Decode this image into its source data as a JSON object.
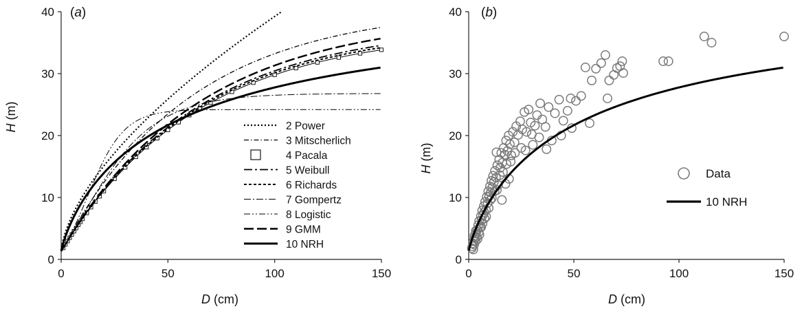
{
  "chart_data": [
    {
      "type": "line",
      "panel_label": "(a)",
      "xlabel": "D (cm)",
      "ylabel": "H (m)",
      "xlim": [
        0,
        150
      ],
      "ylim": [
        0,
        40
      ],
      "xticks": [
        0,
        50,
        100,
        150
      ],
      "yticks": [
        0,
        10,
        20,
        30,
        40
      ],
      "legend_position": "bottom-right",
      "series": [
        {
          "name": "2 Power",
          "style": "dotted",
          "model": "power",
          "params": {
            "a": 1.0,
            "b": 2.2,
            "c": 0.62
          }
        },
        {
          "name": "3 Mitscherlich",
          "style": "dashdot",
          "model": "monomolecular",
          "params": {
            "hmax": 40.8,
            "h0": 1.3,
            "k": 0.0165
          }
        },
        {
          "name": "4 Pacala",
          "style": "squares",
          "model": "monomolecular",
          "params": {
            "hmax": 37.2,
            "h0": 1.3,
            "k": 0.0158
          },
          "markers_x": [
            1,
            2,
            3,
            4,
            5,
            6,
            7,
            8,
            9,
            10,
            12,
            14,
            16,
            18,
            20,
            25,
            30,
            35,
            40,
            45,
            50,
            55,
            60,
            65,
            70,
            80,
            90,
            100,
            110,
            120,
            130,
            140,
            150
          ]
        },
        {
          "name": "5 Weibull",
          "style": "longdashdot",
          "model": "monomolecular",
          "params": {
            "hmax": 38.0,
            "h0": 1.3,
            "k": 0.0158
          }
        },
        {
          "name": "6 Richards",
          "style": "shortdash",
          "model": "monomolecular",
          "params": {
            "hmax": 37.6,
            "h0": 1.3,
            "k": 0.0158
          }
        },
        {
          "name": "7 Gompertz",
          "style": "dashdot-thin",
          "model": "gompertz",
          "params": {
            "hmax": 26.8,
            "h0": 1.3,
            "k": 0.052
          }
        },
        {
          "name": "8 Logistic",
          "style": "dashdotdot",
          "model": "logistic",
          "params": {
            "hmax": 24.2,
            "h0": 1.3,
            "k": 0.115
          }
        },
        {
          "name": "9 GMM",
          "style": "longdash",
          "model": "monomolecular",
          "params": {
            "hmax": 39.4,
            "h0": 1.3,
            "k": 0.0155
          }
        },
        {
          "name": "10 NRH",
          "style": "solid",
          "model": "nrh",
          "params": {
            "hmax": 43.5,
            "h0": 1.3,
            "a": 29.8,
            "b": 0.85
          }
        }
      ]
    },
    {
      "type": "scatter",
      "panel_label": "(b)",
      "xlabel": "D (cm)",
      "ylabel": "H (m)",
      "xlim": [
        0,
        150
      ],
      "ylim": [
        0,
        40
      ],
      "xticks": [
        0,
        50,
        100,
        150
      ],
      "yticks": [
        0,
        10,
        20,
        30,
        40
      ],
      "legend_position": "center-right",
      "series": [
        {
          "name": "Data",
          "style": "open-circle",
          "points": [
            [
              1.5,
              1.8
            ],
            [
              1.8,
              2.1
            ],
            [
              2.0,
              2.6
            ],
            [
              2.3,
              3.0
            ],
            [
              2.6,
              2.4
            ],
            [
              3.0,
              3.5
            ],
            [
              3.2,
              2.9
            ],
            [
              3.5,
              4.2
            ],
            [
              3.8,
              3.6
            ],
            [
              4.1,
              4.8
            ],
            [
              4.5,
              5.5
            ],
            [
              4.8,
              4.4
            ],
            [
              5.0,
              6.2
            ],
            [
              5.4,
              5.1
            ],
            [
              5.8,
              7.0
            ],
            [
              6.1,
              6.3
            ],
            [
              6.4,
              7.9
            ],
            [
              6.8,
              7.2
            ],
            [
              7.2,
              8.6
            ],
            [
              7.5,
              6.6
            ],
            [
              7.8,
              9.3
            ],
            [
              8.2,
              8.0
            ],
            [
              8.6,
              10.1
            ],
            [
              9.0,
              9.1
            ],
            [
              9.3,
              11.0
            ],
            [
              9.7,
              10.2
            ],
            [
              10.1,
              11.8
            ],
            [
              10.5,
              10.8
            ],
            [
              10.8,
              12.7
            ],
            [
              11.2,
              11.6
            ],
            [
              11.6,
              13.5
            ],
            [
              12.0,
              12.5
            ],
            [
              12.5,
              14.3
            ],
            [
              13.0,
              13.2
            ],
            [
              13.6,
              15.2
            ],
            [
              14.0,
              12.0
            ],
            [
              14.5,
              16.1
            ],
            [
              15.0,
              14.8
            ],
            [
              15.5,
              17.2
            ],
            [
              16.0,
              15.6
            ],
            [
              16.6,
              18.0
            ],
            [
              17.2,
              16.9
            ],
            [
              17.8,
              19.2
            ],
            [
              18.4,
              17.5
            ],
            [
              19.0,
              20.0
            ],
            [
              19.6,
              18.6
            ],
            [
              20.3,
              16.8
            ],
            [
              21.0,
              20.6
            ],
            [
              21.8,
              18.9
            ],
            [
              22.6,
              21.5
            ],
            [
              23.5,
              20.1
            ],
            [
              24.5,
              22.3
            ],
            [
              25.5,
              21.0
            ],
            [
              26.5,
              23.8
            ],
            [
              27.5,
              20.6
            ],
            [
              28.5,
              24.2
            ],
            [
              29.5,
              22.1
            ],
            [
              30.5,
              18.5
            ],
            [
              31.5,
              21.6
            ],
            [
              32.5,
              23.3
            ],
            [
              33.5,
              19.7
            ],
            [
              35.0,
              22.6
            ],
            [
              36.5,
              21.4
            ],
            [
              38.0,
              24.6
            ],
            [
              39.5,
              19.2
            ],
            [
              41.0,
              23.6
            ],
            [
              43.0,
              25.8
            ],
            [
              45.0,
              22.4
            ],
            [
              47.0,
              24.0
            ],
            [
              49.0,
              21.2
            ],
            [
              51.0,
              25.6
            ],
            [
              53.5,
              26.4
            ],
            [
              55.5,
              31.0
            ],
            [
              57.5,
              22.0
            ],
            [
              58.5,
              28.9
            ],
            [
              60.5,
              30.8
            ],
            [
              63.0,
              31.7
            ],
            [
              65.0,
              33.0
            ],
            [
              66.0,
              26.0
            ],
            [
              66.8,
              28.9
            ],
            [
              69.0,
              29.8
            ],
            [
              70.5,
              30.9
            ],
            [
              72.0,
              31.2
            ],
            [
              73.0,
              32.0
            ],
            [
              73.5,
              30.1
            ],
            [
              92.5,
              32.0
            ],
            [
              95.0,
              32.0
            ],
            [
              112.0,
              36.0
            ],
            [
              115.5,
              35.0
            ],
            [
              150.0,
              36.0
            ],
            [
              2.2,
              1.6
            ],
            [
              2.7,
              3.8
            ],
            [
              3.4,
              4.6
            ],
            [
              4.2,
              3.3
            ],
            [
              5.1,
              4.0
            ],
            [
              5.9,
              5.2
            ],
            [
              6.6,
              5.8
            ],
            [
              7.4,
              7.6
            ],
            [
              8.3,
              6.9
            ],
            [
              9.5,
              8.3
            ],
            [
              10.3,
              9.6
            ],
            [
              11.0,
              9.9
            ],
            [
              12.3,
              11.0
            ],
            [
              13.4,
              11.2
            ],
            [
              14.8,
              13.6
            ],
            [
              16.3,
              14.1
            ],
            [
              18.0,
              15.4
            ],
            [
              20.0,
              15.8
            ],
            [
              22.0,
              17.2
            ],
            [
              25.0,
              18.0
            ],
            [
              27.0,
              17.6
            ],
            [
              30.0,
              20.2
            ],
            [
              34.0,
              25.2
            ],
            [
              37.0,
              17.8
            ],
            [
              44.0,
              20.0
            ],
            [
              48.5,
              26.0
            ],
            [
              15.8,
              9.6
            ],
            [
              17.5,
              12.2
            ],
            [
              19.2,
              13.0
            ],
            [
              13.2,
              17.3
            ]
          ]
        },
        {
          "name": "10 NRH",
          "style": "solid",
          "model": "nrh",
          "params": {
            "hmax": 43.5,
            "h0": 1.3,
            "a": 29.8,
            "b": 0.85
          }
        }
      ]
    }
  ]
}
